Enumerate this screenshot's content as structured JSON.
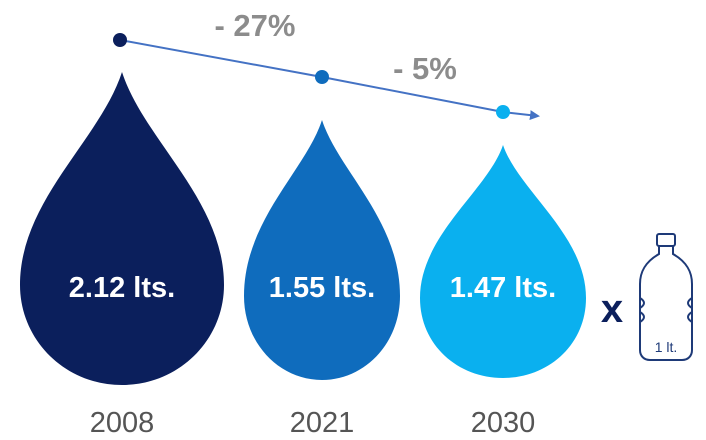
{
  "drops": [
    {
      "value_label": "2.12 lts.",
      "year": "2008",
      "color": "#0b1f5c"
    },
    {
      "value_label": "1.55 lts.",
      "year": "2021",
      "color": "#0f6cbd"
    },
    {
      "value_label": "1.47 lts.",
      "year": "2030",
      "color": "#0ab0ef"
    }
  ],
  "trend": {
    "changes": [
      "- 27%",
      "- 5%"
    ],
    "line_color": "#4472c4",
    "dot_colors": [
      "#0b1f5c",
      "#0f6cbd",
      "#0ab0ef"
    ]
  },
  "multiplier": "x",
  "bottle": {
    "label": "1 lt.",
    "icon": "water-bottle-icon"
  }
}
